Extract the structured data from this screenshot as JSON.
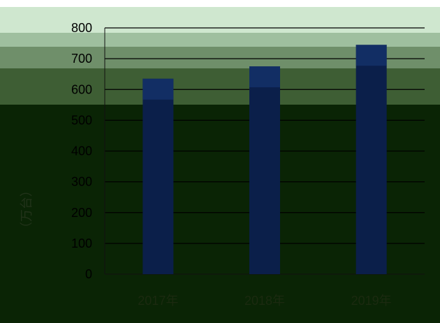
{
  "chart_data": {
    "type": "bar",
    "title": "",
    "xlabel": "",
    "ylabel": "（万台）",
    "categories": [
      "2017年",
      "2018年",
      "2019年"
    ],
    "values": [
      635,
      675,
      745
    ],
    "ylim": [
      0,
      800
    ],
    "yticks": [
      0,
      100,
      200,
      300,
      400,
      500,
      600,
      700,
      800
    ],
    "grid": true,
    "legend": "none",
    "colors": {
      "bar": "#0b1f4a",
      "bar_top": "#1a3a7a",
      "gridline": "#000000",
      "axis": "#111111",
      "overlay_bands": [
        "#cfe7cf",
        "#9fbf9f",
        "#6f8f6a",
        "#3e5e34",
        "#0a2405"
      ]
    }
  }
}
